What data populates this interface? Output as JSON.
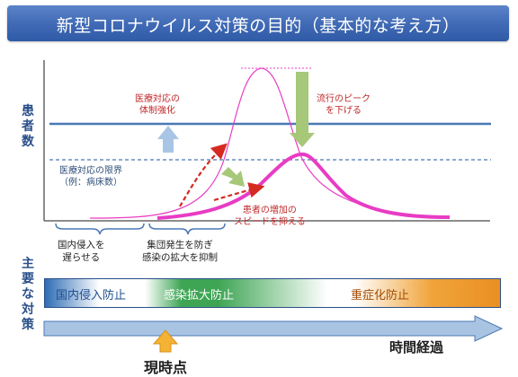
{
  "title": "新型コロナウイルス対策の目的（基本的な考え方）",
  "y_axis_title": [
    "患",
    "者",
    "数"
  ],
  "measures_title": [
    "主",
    "要",
    "な",
    "対",
    "策"
  ],
  "annotations": {
    "medical_strengthen": [
      "医療対応の",
      "体制強化"
    ],
    "lower_peak": [
      "流行のピーク",
      "を下げる"
    ],
    "capacity_limit": [
      "医療対応の限界",
      "（例：病床数）"
    ],
    "slow_increase": [
      "患者の増加の",
      "スピードを抑える"
    ]
  },
  "phases": {
    "delay_entry": [
      "国内侵入を",
      "遅らせる"
    ],
    "prevent_spread": [
      "集団発生を防ぎ",
      "感染の拡大を抑制"
    ]
  },
  "measures": [
    "国内侵入防止",
    "感染拡大防止",
    "重症化防止"
  ],
  "time_axis_label": "時間経過",
  "now_label": "現時点",
  "colors": {
    "title_bar": "#3f69b4",
    "curve": "#e83cc4",
    "capacity_line": "#4a78b5",
    "dashed_arrow": "#d42a22",
    "green_arrow": "#a7c779",
    "up_arrow": "#a8c5e5",
    "time_arrow": "#a9c4e3",
    "now_arrow": "#f5b335"
  },
  "icons": [
    "up-arrow-icon",
    "down-arrow-icon",
    "curved-dashed-arrow-icon",
    "diagonal-arrow-icon",
    "time-arrow-icon",
    "now-pointer-icon",
    "bracket-icon"
  ]
}
